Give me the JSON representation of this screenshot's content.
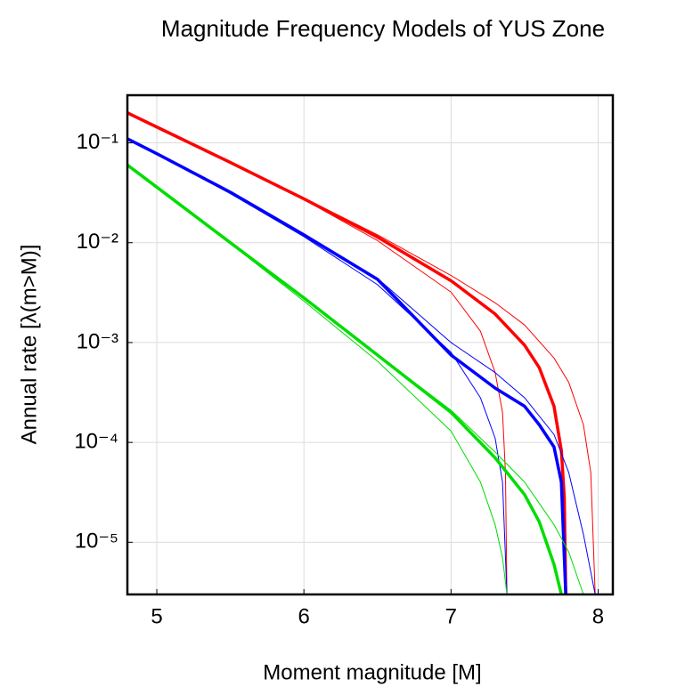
{
  "chart_data": {
    "type": "line",
    "title": "Magnitude Frequency Models of YUS Zone",
    "xlabel": "Moment magnitude [M]",
    "ylabel": "Annual rate [λ(m>M)]",
    "xlim": [
      4.8,
      8.1
    ],
    "xticks": [
      5,
      6,
      7,
      8
    ],
    "ylim": [
      3e-06,
      0.3
    ],
    "log_y": true,
    "yticks": [
      {
        "value": 0.1,
        "label": "10⁻¹"
      },
      {
        "value": 0.01,
        "label": "10⁻²"
      },
      {
        "value": 0.001,
        "label": "10⁻³"
      },
      {
        "value": 0.0001,
        "label": "10⁻⁴"
      },
      {
        "value": 1e-05,
        "label": "10⁻⁵"
      }
    ],
    "grid": true,
    "series": [
      {
        "color": "#ff0000",
        "linewidth": 1,
        "x": [
          4.8,
          5,
          5.5,
          6,
          6.5,
          7,
          7.2,
          7.3,
          7.35,
          7.37,
          7.38
        ],
        "values": [
          0.2,
          0.144,
          0.063,
          0.027,
          0.0105,
          0.0032,
          0.0013,
          0.0005,
          0.0002,
          5e-05,
          3e-06
        ]
      },
      {
        "color": "#ff0000",
        "linewidth": 1,
        "x": [
          4.8,
          5,
          5.5,
          6,
          6.5,
          7,
          7.3,
          7.5,
          7.7,
          7.8,
          7.9,
          7.95,
          7.98
        ],
        "values": [
          0.2,
          0.144,
          0.064,
          0.028,
          0.012,
          0.0047,
          0.0025,
          0.0015,
          0.0007,
          0.0004,
          0.00015,
          5e-05,
          3e-06
        ]
      },
      {
        "color": "#ff0000",
        "linewidth": 3.5,
        "x": [
          4.8,
          5,
          5.5,
          6,
          6.5,
          7,
          7.3,
          7.5,
          7.6,
          7.7,
          7.75,
          7.77,
          7.78
        ],
        "values": [
          0.2,
          0.144,
          0.0636,
          0.0275,
          0.0114,
          0.00416,
          0.00193,
          0.00094,
          0.00056,
          0.00023,
          8.3e-05,
          2.8e-05,
          3e-06
        ]
      },
      {
        "color": "#0000ff",
        "linewidth": 1,
        "x": [
          4.8,
          5,
          5.5,
          6,
          6.5,
          7,
          7.2,
          7.3,
          7.35,
          7.38
        ],
        "values": [
          0.11,
          0.078,
          0.031,
          0.0115,
          0.0038,
          0.0008,
          0.00028,
          0.00011,
          4e-05,
          3e-06
        ]
      },
      {
        "color": "#0000ff",
        "linewidth": 1,
        "x": [
          4.8,
          5,
          5.5,
          6,
          6.5,
          7,
          7.3,
          7.5,
          7.7,
          7.8,
          7.9,
          7.98
        ],
        "values": [
          0.11,
          0.078,
          0.032,
          0.012,
          0.0044,
          0.001,
          0.0005,
          0.00028,
          0.00012,
          5e-05,
          1.2e-05,
          3e-06
        ]
      },
      {
        "color": "#0000ff",
        "linewidth": 3.5,
        "x": [
          4.8,
          5,
          5.5,
          6,
          6.5,
          7,
          7.3,
          7.5,
          7.6,
          7.7,
          7.75,
          7.78
        ],
        "values": [
          0.11,
          0.078,
          0.032,
          0.012,
          0.0043,
          0.00075,
          0.00035,
          0.00023,
          0.00015,
          9e-05,
          4e-05,
          3e-06
        ]
      },
      {
        "color": "#00dd00",
        "linewidth": 1,
        "x": [
          4.8,
          5,
          5.5,
          6,
          6.5,
          7,
          7.2,
          7.3,
          7.35,
          7.38
        ],
        "values": [
          0.06,
          0.036,
          0.0098,
          0.0026,
          0.00065,
          0.00013,
          4e-05,
          1.5e-05,
          7e-06,
          3e-06
        ]
      },
      {
        "color": "#00dd00",
        "linewidth": 1,
        "x": [
          4.8,
          5,
          5.5,
          6,
          6.5,
          7,
          7.3,
          7.5,
          7.7,
          7.8,
          7.9
        ],
        "values": [
          0.06,
          0.036,
          0.01,
          0.0028,
          0.00076,
          0.00021,
          8e-05,
          4e-05,
          1.5e-05,
          8e-06,
          3e-06
        ]
      },
      {
        "color": "#00dd00",
        "linewidth": 3.5,
        "x": [
          4.8,
          5,
          5.5,
          6,
          6.5,
          7,
          7.3,
          7.5,
          7.6,
          7.7,
          7.75
        ],
        "values": [
          0.06,
          0.036,
          0.01,
          0.0028,
          0.00075,
          0.0002,
          7e-05,
          3e-05,
          1.6e-05,
          6e-06,
          3e-06
        ]
      }
    ]
  }
}
